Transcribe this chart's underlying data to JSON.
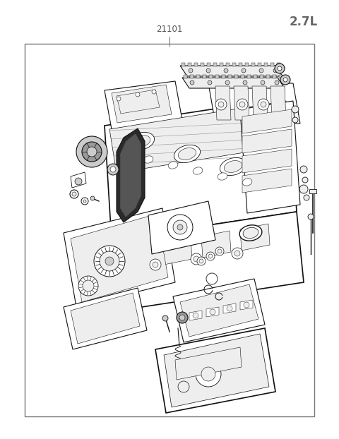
{
  "title_top_right": "2.7L",
  "part_number": "21101",
  "background_color": "#ffffff",
  "border_color": "#777777",
  "text_color": "#555555",
  "fig_width": 4.8,
  "fig_height": 6.22,
  "dpi": 100
}
